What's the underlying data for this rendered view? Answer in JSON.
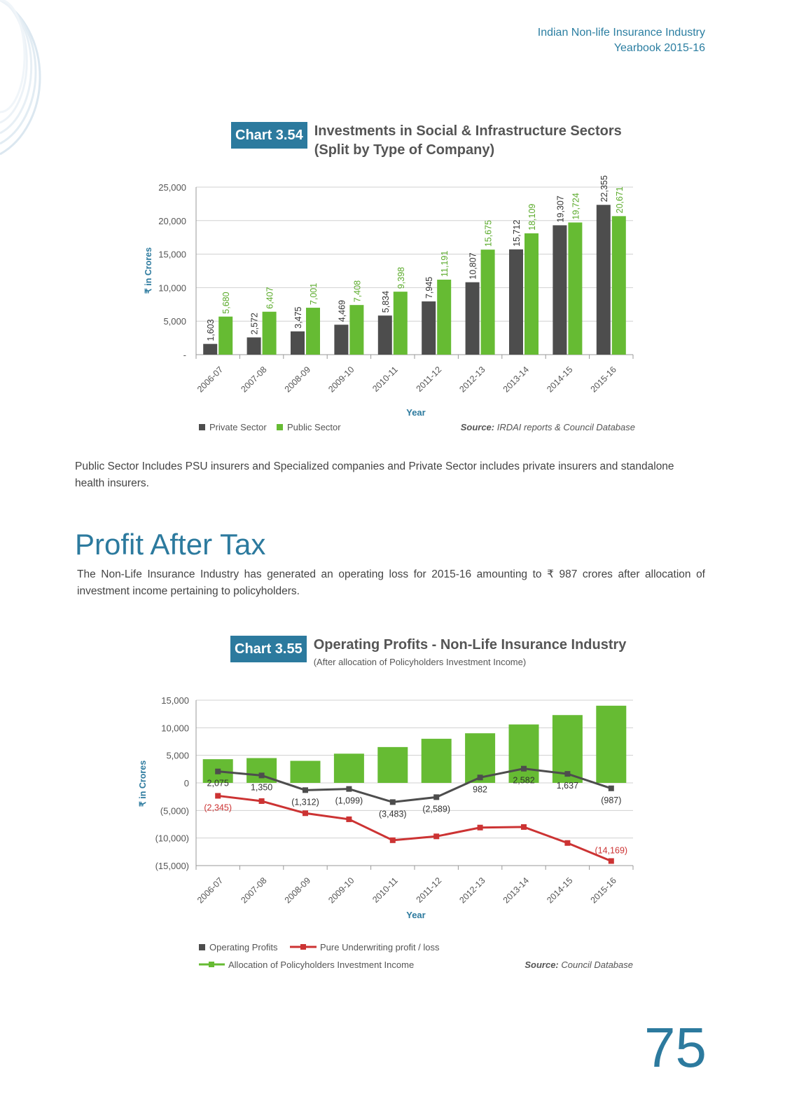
{
  "header": {
    "line1": "Indian Non-life Insurance Industry",
    "line2": "Yearbook 2015-16"
  },
  "chart1": {
    "badge": "Chart 3.54",
    "title1": "Investments in Social & Infrastructure Sectors",
    "title2": "(Split by Type of Company)",
    "source_label": "Source:",
    "source_text": "IRDAI reports & Council Database"
  },
  "para1": "Public Sector Includes PSU insurers and Specialized companies and Private Sector includes private insurers and standalone health insurers.",
  "section_title": "Profit After Tax",
  "para2": "The Non-Life Insurance Industry has generated an operating loss for 2015-16 amounting to ₹ 987 crores after allocation of investment income pertaining to policyholders.",
  "chart2": {
    "badge": "Chart 3.55",
    "title1": "Operating Profits - Non-Life Insurance Industry",
    "subtitle": "(After allocation of Policyholders Investment Income)",
    "source_label": "Source:",
    "source_text": "Council Database"
  },
  "page_number": "75",
  "colors": {
    "accent": "#2c7a9e",
    "private": "#4d4d4d",
    "public": "#66bb33",
    "underwriting": "#cc3333"
  },
  "chart_data": [
    {
      "type": "bar",
      "categories": [
        "2006-07",
        "2007-08",
        "2008-09",
        "2009-10",
        "2010-11",
        "2011-12",
        "2012-13",
        "2013-14",
        "2014-15",
        "2015-16"
      ],
      "series": [
        {
          "name": "Private Sector",
          "values": [
            1603,
            2572,
            3475,
            4469,
            5834,
            7945,
            10807,
            15712,
            19307,
            22355
          ],
          "labels": [
            "1,603",
            "2,572",
            "3,475",
            "4,469",
            "5,834",
            "7,945",
            "10,807",
            "15,712",
            "19,307",
            "22,355"
          ]
        },
        {
          "name": "Public Sector",
          "values": [
            5680,
            6407,
            7001,
            7408,
            9398,
            11191,
            15675,
            18109,
            19724,
            20671
          ],
          "labels": [
            "5,680",
            "6,407",
            "7,001",
            "7,408",
            "9,398",
            "11,191",
            "15,675",
            "18,109",
            "19,724",
            "20,671"
          ]
        }
      ],
      "ylim": [
        0,
        25000
      ],
      "yticks": [
        0,
        5000,
        10000,
        15000,
        20000,
        25000
      ],
      "ytick_labels": [
        "-",
        "5,000",
        "10,000",
        "15,000",
        "20,000",
        "25,000"
      ],
      "xlabel": "Year",
      "ylabel": "₹ in Crores",
      "grid": true,
      "legend": "bottom-left"
    },
    {
      "type": "bar",
      "categories": [
        "2006-07",
        "2007-08",
        "2008-09",
        "2009-10",
        "2010-11",
        "2011-12",
        "2012-13",
        "2013-14",
        "2014-15",
        "2015-16"
      ],
      "series": [
        {
          "name": "Operating Profits",
          "type": "line",
          "values": [
            2075,
            1350,
            -1312,
            -1099,
            -3483,
            -2589,
            982,
            2582,
            1637,
            -987
          ],
          "labels": [
            "2,075",
            "1,350",
            "(1,312)",
            "(1,099)",
            "(3,483)",
            "(2,589)",
            "982",
            "2,582",
            "1,637",
            "(987)"
          ]
        },
        {
          "name": "Pure Underwriting profit / loss",
          "type": "line",
          "values": [
            -2345,
            -3300,
            -5500,
            -6600,
            -10400,
            -9700,
            -8100,
            -8000,
            -10900,
            -14169
          ],
          "labels": [
            "(2,345)",
            "",
            "",
            "",
            "",
            "",
            "",
            "",
            "",
            "(14,169)"
          ]
        },
        {
          "name": "Allocation of Policyholders Investment Income",
          "type": "bar",
          "values": [
            4300,
            4500,
            4000,
            5300,
            6500,
            8000,
            9000,
            10600,
            12300,
            14000
          ]
        }
      ],
      "ylim": [
        -15000,
        15000
      ],
      "yticks": [
        -15000,
        -10000,
        -5000,
        0,
        5000,
        10000,
        15000
      ],
      "ytick_labels": [
        "(15,000)",
        "(10,000)",
        "(5,000)",
        "0",
        "5,000",
        "10,000",
        "15,000"
      ],
      "xlabel": "Year",
      "ylabel": "₹ in Crores",
      "grid": true,
      "legend": "bottom-left"
    }
  ]
}
